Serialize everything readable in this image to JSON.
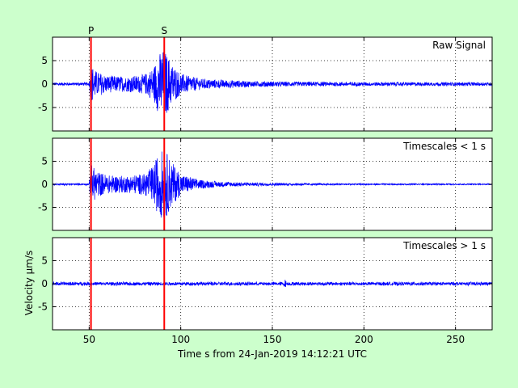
{
  "chart_data": {
    "type": "line",
    "figure_background": "#ccffcc",
    "series_color": "#0000ff",
    "marker_color": "#ff0000",
    "xlim": [
      30,
      270
    ],
    "xticks": [
      50,
      100,
      150,
      200,
      250
    ],
    "xlabel": "Time s from 24-Jan-2019 14:12:21 UTC",
    "ylabel": "Velocity μm/s",
    "grid": true,
    "phase_markers": [
      {
        "label": "P",
        "x": 51
      },
      {
        "label": "S",
        "x": 91
      }
    ],
    "panels": [
      {
        "label": "Raw Signal",
        "ylim": [
          -10,
          10
        ],
        "yticks": [
          5,
          0,
          -5
        ],
        "series": [
          {
            "noise_level": 0.25,
            "envelope": [
              [
                30,
                0.3
              ],
              [
                50,
                0.3
              ],
              [
                51,
                4.2
              ],
              [
                54,
                2.7
              ],
              [
                60,
                1.8
              ],
              [
                70,
                1.6
              ],
              [
                80,
                2.0
              ],
              [
                85,
                3.5
              ],
              [
                88,
                6.5
              ],
              [
                91,
                7.5
              ],
              [
                95,
                4.5
              ],
              [
                100,
                2.2
              ],
              [
                110,
                1.2
              ],
              [
                120,
                0.9
              ],
              [
                140,
                0.6
              ],
              [
                160,
                0.5
              ],
              [
                200,
                0.4
              ],
              [
                270,
                0.35
              ]
            ]
          }
        ]
      },
      {
        "label": "Timescales < 1 s",
        "ylim": [
          -10,
          10
        ],
        "yticks": [
          5,
          0,
          -5
        ],
        "series": [
          {
            "noise_level": 0.15,
            "envelope": [
              [
                30,
                0.2
              ],
              [
                50,
                0.2
              ],
              [
                51,
                4.5
              ],
              [
                54,
                2.9
              ],
              [
                60,
                2.0
              ],
              [
                70,
                1.8
              ],
              [
                80,
                2.3
              ],
              [
                85,
                4.0
              ],
              [
                88,
                7.0
              ],
              [
                91,
                7.8
              ],
              [
                95,
                5.0
              ],
              [
                100,
                2.2
              ],
              [
                110,
                1.0
              ],
              [
                120,
                0.6
              ],
              [
                140,
                0.35
              ],
              [
                160,
                0.25
              ],
              [
                200,
                0.15
              ],
              [
                270,
                0.12
              ]
            ]
          }
        ]
      },
      {
        "label": "Timescales > 1 s",
        "ylim": [
          -10,
          10
        ],
        "yticks": [
          5,
          0,
          -5
        ],
        "series": [
          {
            "noise_level": 0.3,
            "envelope": [
              [
                30,
                0.35
              ],
              [
                156,
                0.35
              ],
              [
                157,
                0.9
              ],
              [
                158,
                0.35
              ],
              [
                270,
                0.35
              ]
            ]
          }
        ]
      }
    ]
  }
}
